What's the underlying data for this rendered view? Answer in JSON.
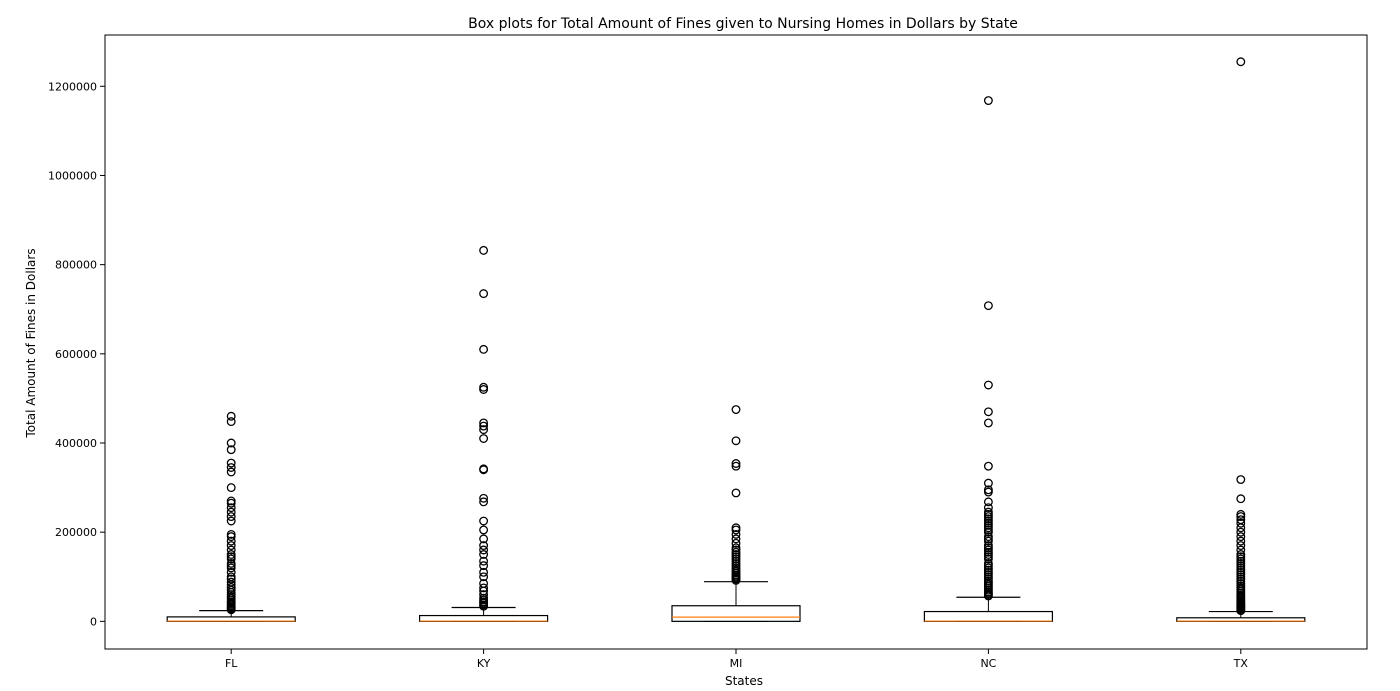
{
  "chart_data": {
    "type": "boxplot",
    "title": "Box plots for Total Amount of Fines given to Nursing Homes in Dollars by State",
    "xlabel": "States",
    "ylabel": "Total Amount of Fines in Dollars",
    "ylim": [
      -62000,
      1315000
    ],
    "yticks": [
      0,
      200000,
      400000,
      600000,
      800000,
      1000000,
      1200000
    ],
    "yticklabels": [
      "0",
      "200000",
      "400000",
      "600000",
      "800000",
      "1000000",
      "1200000"
    ],
    "categories": [
      "FL",
      "KY",
      "MI",
      "NC",
      "TX"
    ],
    "colors": {
      "box": "#000000",
      "median": "#ff7f0e",
      "outlier": "#000000"
    },
    "boxes": [
      {
        "label": "FL",
        "whisker_low": 0,
        "q1": 0,
        "median": 650,
        "q3": 10000,
        "whisker_high": 24000,
        "outliers": [
          26000,
          28000,
          30000,
          32000,
          35000,
          38000,
          41000,
          44000,
          48000,
          52000,
          56000,
          60000,
          65000,
          70000,
          76000,
          82000,
          88000,
          95000,
          100000,
          110000,
          120000,
          125000,
          130000,
          140000,
          145000,
          150000,
          160000,
          170000,
          180000,
          190000,
          195000,
          225000,
          235000,
          245000,
          255000,
          265000,
          270000,
          300000,
          335000,
          345000,
          355000,
          385000,
          400000,
          448000,
          460000
        ]
      },
      {
        "label": "KY",
        "whisker_low": 0,
        "q1": 0,
        "median": 650,
        "q3": 13000,
        "whisker_high": 31000,
        "outliers": [
          34000,
          37000,
          41000,
          44000,
          48000,
          52000,
          60000,
          68000,
          75000,
          85000,
          100000,
          110000,
          125000,
          135000,
          150000,
          160000,
          170000,
          185000,
          205000,
          225000,
          268000,
          276000,
          340000,
          342000,
          410000,
          430000,
          438000,
          445000,
          520000,
          525000,
          610000,
          735000,
          832000
        ]
      },
      {
        "label": "MI",
        "whisker_low": 0,
        "q1": 0,
        "median": 9500,
        "q3": 35000,
        "whisker_high": 89000,
        "outliers": [
          92000,
          95000,
          98000,
          101000,
          104000,
          108000,
          112000,
          116000,
          120000,
          125000,
          130000,
          135000,
          140000,
          145000,
          150000,
          155000,
          160000,
          165000,
          175000,
          185000,
          195000,
          205000,
          210000,
          288000,
          348000,
          354000,
          405000,
          475000
        ]
      },
      {
        "label": "NC",
        "whisker_low": 0,
        "q1": 0,
        "median": 650,
        "q3": 22000,
        "whisker_high": 54000,
        "outliers": [
          57000,
          60000,
          63000,
          66000,
          70000,
          74000,
          78000,
          82000,
          86000,
          90000,
          95000,
          100000,
          105000,
          110000,
          115000,
          120000,
          125000,
          130000,
          140000,
          145000,
          150000,
          155000,
          160000,
          165000,
          170000,
          180000,
          185000,
          190000,
          200000,
          205000,
          210000,
          215000,
          220000,
          225000,
          230000,
          235000,
          240000,
          245000,
          255000,
          268000,
          290000,
          295000,
          310000,
          348000,
          445000,
          470000,
          530000,
          708000,
          1168000
        ]
      },
      {
        "label": "TX",
        "whisker_low": 0,
        "q1": 0,
        "median": 650,
        "q3": 8000,
        "whisker_high": 22000,
        "outliers": [
          24000,
          26000,
          28000,
          30000,
          32000,
          34000,
          36000,
          38000,
          40000,
          42000,
          45000,
          48000,
          51000,
          54000,
          57000,
          60000,
          64000,
          68000,
          72000,
          76000,
          80000,
          85000,
          90000,
          95000,
          100000,
          105000,
          110000,
          115000,
          120000,
          125000,
          130000,
          135000,
          140000,
          145000,
          150000,
          160000,
          170000,
          180000,
          190000,
          200000,
          210000,
          220000,
          228000,
          235000,
          240000,
          275000,
          318000,
          1255000
        ]
      }
    ]
  }
}
